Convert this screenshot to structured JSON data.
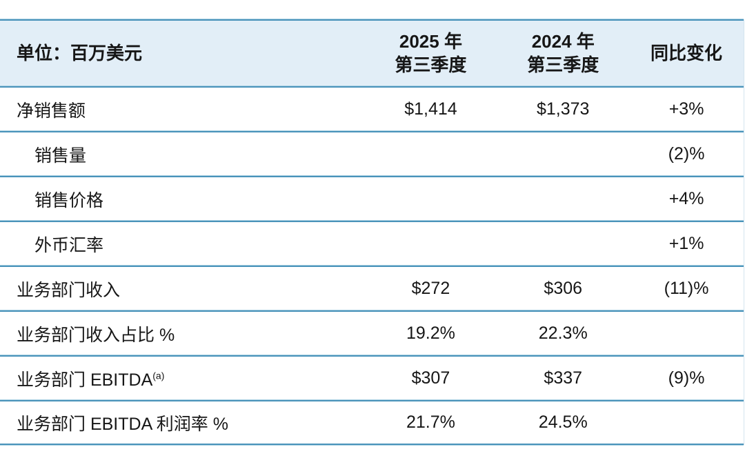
{
  "table": {
    "unit_label": "单位：百万美元",
    "columns": {
      "q3_2025": {
        "line1": "2025 年",
        "line2": "第三季度"
      },
      "q3_2024": {
        "line1": "2024 年",
        "line2": "第三季度"
      },
      "yoy": {
        "label": "同比变化"
      }
    },
    "rows": [
      {
        "label": "净销售额",
        "q3_2025": "$1,414",
        "q3_2024": "$1,373",
        "yoy": "+3%"
      },
      {
        "label": "销售量",
        "q3_2025": "",
        "q3_2024": "",
        "yoy": "(2)%"
      },
      {
        "label": "销售价格",
        "q3_2025": "",
        "q3_2024": "",
        "yoy": "+4%"
      },
      {
        "label": "外币汇率",
        "q3_2025": "",
        "q3_2024": "",
        "yoy": "+1%"
      },
      {
        "label": "业务部门收入",
        "q3_2025": "$272",
        "q3_2024": "$306",
        "yoy": "(11)%"
      },
      {
        "label": "业务部门收入占比 %",
        "q3_2025": "19.2%",
        "q3_2024": "22.3%",
        "yoy": ""
      },
      {
        "label": "业务部门 EBITDA",
        "superscript": "(a)",
        "q3_2025": "$307",
        "q3_2024": "$337",
        "yoy": "(9)%"
      },
      {
        "label": "业务部门 EBITDA 利润率 %",
        "q3_2025": "21.7%",
        "q3_2024": "24.5%",
        "yoy": ""
      }
    ],
    "colors": {
      "header_bg": "#e2eef7",
      "divider": "#4a93ba",
      "divider_glow": "#a9d0e2",
      "text": "#161616"
    }
  }
}
